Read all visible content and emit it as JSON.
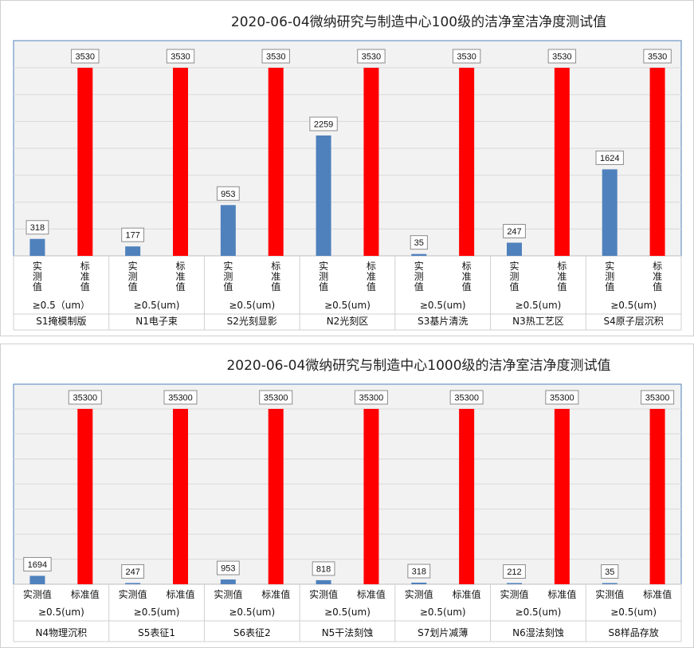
{
  "colors": {
    "actual": "#4f81bd",
    "standard": "#ff0000",
    "plot_bg": "#f2f2f2",
    "grid": "#d9d9d9"
  },
  "chart_data": [
    {
      "type": "bar",
      "title": "2020-06-04微纳研究与制造中心100级的洁净室洁净度测试值",
      "series_labels": [
        "实测值",
        "标准值"
      ],
      "categories": [
        {
          "name": "S1掩模制版",
          "size": "≥0.5（um）",
          "actual": 318,
          "standard": 3530
        },
        {
          "name": "N1电子束",
          "size": "≥0.5(um)",
          "actual": 177,
          "standard": 3530
        },
        {
          "name": "S2光刻显影",
          "size": "≥0.5(um)",
          "actual": 953,
          "standard": 3530
        },
        {
          "name": "N2光刻区",
          "size": "≥0.5(um)",
          "actual": 2259,
          "standard": 3530
        },
        {
          "name": "S3基片清洗",
          "size": "≥0.5(um)",
          "actual": 35,
          "standard": 3530
        },
        {
          "name": "N3热工艺区",
          "size": "≥0.5(um)",
          "actual": 247,
          "standard": 3530
        },
        {
          "name": "S4原子层沉积",
          "size": "≥0.5(um)",
          "actual": 1624,
          "standard": 3530
        }
      ],
      "ylim": [
        0,
        3530
      ],
      "grid": true
    },
    {
      "type": "bar",
      "title": "2020-06-04微纳研究与制造中心1000级的洁净室洁净度测试值",
      "series_labels": [
        "实测值",
        "标准值"
      ],
      "categories": [
        {
          "name": "N4物理沉积",
          "size": "≥0.5(um)",
          "actual": 1694,
          "standard": 35300
        },
        {
          "name": "S5表征1",
          "size": "≥0.5(um)",
          "actual": 247,
          "standard": 35300
        },
        {
          "name": "S6表征2",
          "size": "≥0.5(um)",
          "actual": 953,
          "standard": 35300
        },
        {
          "name": "N5干法刻蚀",
          "size": "≥0.5(um)",
          "actual": 818,
          "standard": 35300
        },
        {
          "name": "S7划片减薄",
          "size": "≥0.5(um)",
          "actual": 318,
          "standard": 35300
        },
        {
          "name": "N6湿法刻蚀",
          "size": "≥0.5(um)",
          "actual": 212,
          "standard": 35300
        },
        {
          "name": "S8样品存放",
          "size": "≥0.5(um)",
          "actual": 35,
          "standard": 35300
        }
      ],
      "ylim": [
        0,
        35300
      ],
      "grid": true
    }
  ]
}
